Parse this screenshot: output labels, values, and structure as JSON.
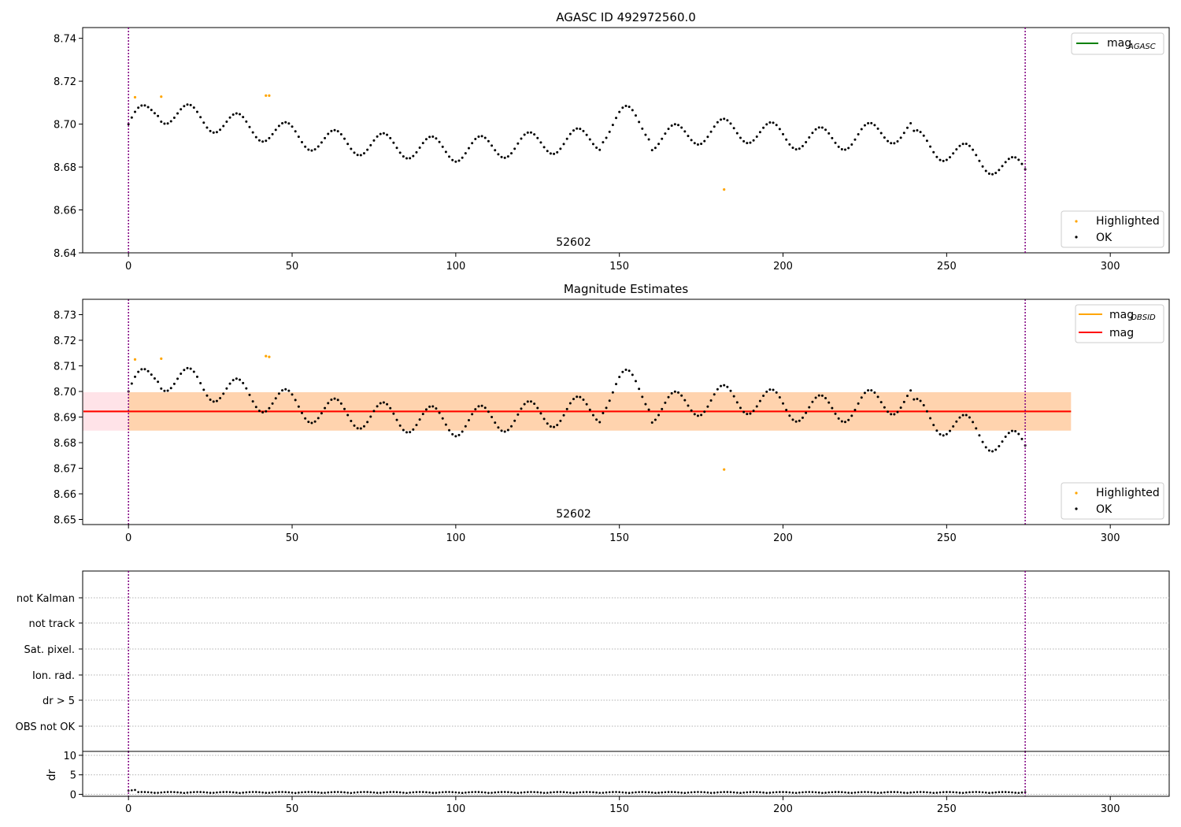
{
  "chart_data": [
    {
      "type": "scatter",
      "title": "AGASC ID 492972560.0",
      "xlim": [
        -14,
        318
      ],
      "ylim": [
        8.64,
        8.745
      ],
      "x_ticks": [
        "0",
        "50",
        "100",
        "150",
        "200",
        "250",
        "300"
      ],
      "y_ticks": [
        "8.64",
        "8.66",
        "8.68",
        "8.70",
        "8.72",
        "8.74"
      ],
      "obsid_label": "52602",
      "obsid_label_x": 136,
      "obsid_bounds": [
        0,
        274
      ],
      "legend_lines": [
        {
          "label": "mag",
          "sub": "AGASC",
          "color": "#008000"
        }
      ],
      "legend_points": [
        {
          "label": "Highlighted",
          "color": "#ffa500"
        },
        {
          "label": "OK",
          "color": "#000000"
        }
      ],
      "highlighted": [
        [
          2,
          8.7125
        ],
        [
          10,
          8.7128
        ],
        [
          42,
          8.7133
        ],
        [
          43,
          8.7133
        ],
        [
          182,
          8.6695
        ]
      ]
    },
    {
      "type": "scatter",
      "title": "Magnitude Estimates",
      "xlim": [
        -14,
        318
      ],
      "ylim": [
        8.648,
        8.736
      ],
      "x_ticks": [
        "0",
        "50",
        "100",
        "150",
        "200",
        "250",
        "300"
      ],
      "y_ticks": [
        "8.65",
        "8.66",
        "8.67",
        "8.68",
        "8.69",
        "8.70",
        "8.71",
        "8.72",
        "8.73"
      ],
      "obsid_label": "52602",
      "obsid_label_x": 136,
      "obsid_bounds": [
        0,
        274
      ],
      "mean_mag": 8.6922,
      "band": [
        8.6847,
        8.6997
      ],
      "band_x": [
        -14,
        288
      ],
      "obsid_band_x": [
        0,
        288
      ],
      "legend_lines": [
        {
          "label": "mag",
          "sub": "OBSID",
          "color": "#ffa500"
        },
        {
          "label": "mag",
          "sub": "",
          "color": "#ff0000"
        }
      ],
      "legend_points": [
        {
          "label": "Highlighted",
          "color": "#ffa500"
        },
        {
          "label": "OK",
          "color": "#000000"
        }
      ],
      "highlighted": [
        [
          2,
          8.7125
        ],
        [
          10,
          8.7128
        ],
        [
          42,
          8.7138
        ],
        [
          43,
          8.7135
        ],
        [
          182,
          8.6695
        ]
      ]
    },
    {
      "type": "scatter",
      "title": "",
      "xlim": [
        -14,
        318
      ],
      "flag_labels": [
        "not Kalman",
        "not track",
        "Sat. pixel.",
        "Ion. rad.",
        "dr > 5",
        "OBS not OK"
      ],
      "dr": {
        "ylabel": "dr",
        "ylim": [
          -0.5,
          11
        ],
        "y_ticks": [
          "0",
          "5",
          "10"
        ],
        "x_ticks": [
          "0",
          "50",
          "100",
          "150",
          "200",
          "250",
          "300"
        ]
      },
      "obsid_bounds": [
        0,
        274
      ]
    }
  ]
}
